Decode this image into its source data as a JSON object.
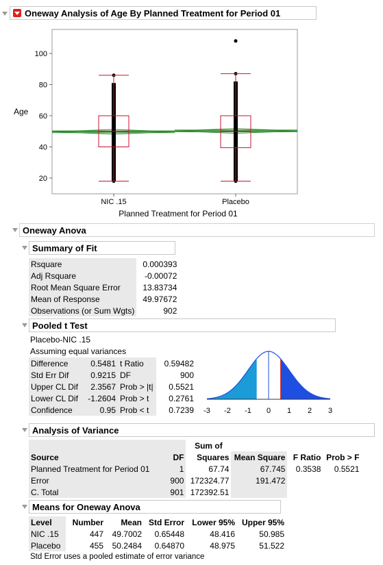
{
  "main": {
    "title": "Oneway Analysis of Age By Planned Treatment for Period 01",
    "plot": {
      "ylabel": "Age",
      "xlabel": "Planned Treatment for Period 01",
      "yticks": [
        "20",
        "40",
        "60",
        "80",
        "100"
      ],
      "groups": [
        "NIC .15",
        "Placebo"
      ]
    }
  },
  "anova": {
    "title": "Oneway Anova",
    "summary": {
      "title": "Summary of Fit",
      "rows": [
        {
          "label": "Rsquare",
          "value": "0.000393"
        },
        {
          "label": "Adj Rsquare",
          "value": "-0.00072"
        },
        {
          "label": "Root Mean Square Error",
          "value": "13.83734"
        },
        {
          "label": "Mean of Response",
          "value": "49.97672"
        },
        {
          "label": "Observations (or Sum Wgts)",
          "value": "902"
        }
      ]
    },
    "ttest": {
      "title": "Pooled t Test",
      "subtitle": "Placebo-NIC .15",
      "note": "Assuming equal variances",
      "left": [
        {
          "label": "Difference",
          "value": "0.5481"
        },
        {
          "label": "Std Err Dif",
          "value": "0.9215"
        },
        {
          "label": "Upper CL Dif",
          "value": "2.3567"
        },
        {
          "label": "Lower CL Dif",
          "value": "-1.2604"
        },
        {
          "label": "Confidence",
          "value": "0.95"
        }
      ],
      "right": [
        {
          "label": "t Ratio",
          "value": "0.59482"
        },
        {
          "label": "DF",
          "value": "900"
        },
        {
          "label": "Prob > |t|",
          "value": "0.5521"
        },
        {
          "label": "Prob > t",
          "value": "0.2761"
        },
        {
          "label": "Prob < t",
          "value": "0.7239"
        }
      ],
      "axis_ticks": [
        "-3",
        "-2",
        "-1",
        "0",
        "1",
        "2",
        "3"
      ],
      "t_ratio": 0.59482
    },
    "aov": {
      "title": "Analysis of Variance",
      "headers": {
        "source": "Source",
        "df": "DF",
        "ss_top": "Sum of",
        "ss_bottom": "Squares",
        "ms": "Mean Square",
        "f": "F Ratio",
        "p": "Prob > F"
      },
      "rows": [
        {
          "source": "Planned Treatment for Period 01",
          "df": "1",
          "ss": "67.74",
          "ms": "67.745",
          "f": "0.3538",
          "p": "0.5521"
        },
        {
          "source": "Error",
          "df": "900",
          "ss": "172324.77",
          "ms": "191.472",
          "f": "",
          "p": ""
        },
        {
          "source": "C. Total",
          "df": "901",
          "ss": "172392.51",
          "ms": "",
          "f": "",
          "p": ""
        }
      ]
    },
    "means": {
      "title": "Means for Oneway Anova",
      "headers": [
        "Level",
        "Number",
        "Mean",
        "Std Error",
        "Lower 95%",
        "Upper 95%"
      ],
      "rows": [
        [
          "NIC .15",
          "447",
          "49.7002",
          "0.65448",
          "48.416",
          "50.985"
        ],
        [
          "Placebo",
          "455",
          "50.2484",
          "0.64870",
          "48.975",
          "51.522"
        ]
      ],
      "footnote": "Std Error uses a pooled estimate of error variance"
    }
  },
  "colors": {
    "box": "#c8102e",
    "diamond": "#2e8b2e",
    "blue_light": "#1b9bd7",
    "blue_dark": "#1f4fe0",
    "red_line": "#d81e1e"
  }
}
